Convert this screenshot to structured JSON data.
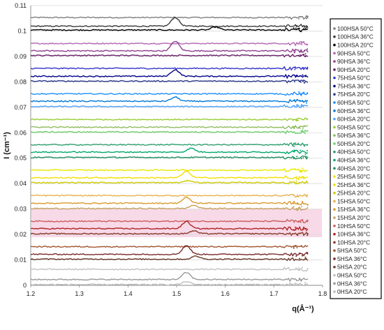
{
  "chart_data": {
    "type": "line",
    "xlabel": "q(Å⁻¹)",
    "ylabel": "I (cm⁻¹)",
    "xlim": [
      1.2,
      1.8
    ],
    "ylim": [
      0,
      0.11
    ],
    "x_ticks": [
      "1.2",
      "1.3",
      "1.4",
      "1.5",
      "1.6",
      "1.7",
      "1.8"
    ],
    "y_ticks": [
      "0",
      "0.01",
      "0.02",
      "0.03",
      "0.04",
      "0.05",
      "0.06",
      "0.07",
      "0.08",
      "0.09",
      "0.1",
      "0.11"
    ],
    "x_data_range": [
      1.2,
      1.77
    ],
    "grid": "horizontal",
    "legend_position": "right",
    "series": [
      {
        "name": "100HSA 50°C",
        "color": "#7f7f7f",
        "baseline": 0.1053,
        "peak_q": null,
        "peak_height": 0
      },
      {
        "name": "100HSA 36°C",
        "color": "#3a3a3a",
        "baseline": 0.1019,
        "peak_q": 1.497,
        "peak_height": 0.0035
      },
      {
        "name": "100HSA 20°C",
        "color": "#000000",
        "baseline": 0.1004,
        "peak_q": 1.58,
        "peak_height": 0.0012
      },
      {
        "name": "90HSA 50°C",
        "color": "#b266b2",
        "baseline": 0.0951,
        "peak_q": null,
        "peak_height": 0
      },
      {
        "name": "90HSA 36°C",
        "color": "#8e3f8e",
        "baseline": 0.0922,
        "peak_q": 1.497,
        "peak_height": 0.0038
      },
      {
        "name": "90HSA 20°C",
        "color": "#6a1f6a",
        "baseline": 0.0904,
        "peak_q": null,
        "peak_height": 0
      },
      {
        "name": "75HSA 50°C",
        "color": "#3333cc",
        "baseline": 0.0853,
        "peak_q": null,
        "peak_height": 0
      },
      {
        "name": "75HSA 36°C",
        "color": "#00008b",
        "baseline": 0.0822,
        "peak_q": 1.497,
        "peak_height": 0.0026
      },
      {
        "name": "75HSA 20°C",
        "color": "#2b3a8c",
        "baseline": 0.0803,
        "peak_q": null,
        "peak_height": 0
      },
      {
        "name": "60HSA 50°C",
        "color": "#1e90ff",
        "baseline": 0.0753,
        "peak_q": null,
        "peak_height": 0
      },
      {
        "name": "60HSA 36°C",
        "color": "#0078d7",
        "baseline": 0.0724,
        "peak_q": 1.497,
        "peak_height": 0.0016
      },
      {
        "name": "60HSA 20°C",
        "color": "#4fa3ff",
        "baseline": 0.0703,
        "peak_q": null,
        "peak_height": 0
      },
      {
        "name": "50HSA 50°C",
        "color": "#9acd32",
        "baseline": 0.0652,
        "peak_q": null,
        "peak_height": 0
      },
      {
        "name": "50HSA 36°C",
        "color": "#8fbc5f",
        "baseline": 0.0622,
        "peak_q": null,
        "peak_height": 0
      },
      {
        "name": "50HSA 20°C",
        "color": "#6fcf6f",
        "baseline": 0.0603,
        "peak_q": null,
        "peak_height": 0
      },
      {
        "name": "40HSA 50°C",
        "color": "#2e9e6e",
        "baseline": 0.0553,
        "peak_q": null,
        "peak_height": 0
      },
      {
        "name": "40HSA 36°C",
        "color": "#00a86b",
        "baseline": 0.0524,
        "peak_q": 1.53,
        "peak_height": 0.0015
      },
      {
        "name": "40HSA 20°C",
        "color": "#1f8f5f",
        "baseline": 0.0503,
        "peak_q": null,
        "peak_height": 0
      },
      {
        "name": "25HSA 50°C",
        "color": "#e8e800",
        "baseline": 0.0453,
        "peak_q": null,
        "peak_height": 0
      },
      {
        "name": "25HSA 36°C",
        "color": "#f0e000",
        "baseline": 0.0423,
        "peak_q": 1.52,
        "peak_height": 0.0025
      },
      {
        "name": "25HSA 20°C",
        "color": "#cccc00",
        "baseline": 0.0404,
        "peak_q": 1.525,
        "peak_height": 0.0008
      },
      {
        "name": "15HSA 50°C",
        "color": "#e8b04a",
        "baseline": 0.0353,
        "peak_q": null,
        "peak_height": 0
      },
      {
        "name": "15HSA 36°C",
        "color": "#d99a2b",
        "baseline": 0.0323,
        "peak_q": 1.52,
        "peak_height": 0.0022
      },
      {
        "name": "15HSA 20°C",
        "color": "#c8a060",
        "baseline": 0.0302,
        "peak_q": 1.535,
        "peak_height": 0.0013
      },
      {
        "name": "10HSA 50°C",
        "color": "#cd5c5c",
        "baseline": 0.0252,
        "peak_q": null,
        "peak_height": 0
      },
      {
        "name": "10HSA 36°C",
        "color": "#b22222",
        "baseline": 0.0223,
        "peak_q": 1.52,
        "peak_height": 0.0028
      },
      {
        "name": "10HSA 20°C",
        "color": "#8b3a2a",
        "baseline": 0.0203,
        "peak_q": 1.535,
        "peak_height": 0.0011
      },
      {
        "name": "5HSA 50°C",
        "color": "#a0522d",
        "baseline": 0.0152,
        "peak_q": null,
        "peak_height": 0
      },
      {
        "name": "5HSA 36°C",
        "color": "#7a2a2a",
        "baseline": 0.0122,
        "peak_q": 1.52,
        "peak_height": 0.0035
      },
      {
        "name": "5HSA 20°C",
        "color": "#6b3a2a",
        "baseline": 0.0103,
        "peak_q": 1.54,
        "peak_height": 0.0012
      },
      {
        "name": "0HSA 50°C",
        "color": "#c0c0c0",
        "baseline": 0.0063,
        "peak_q": null,
        "peak_height": 0
      },
      {
        "name": "0HSA 36°C",
        "color": "#999999",
        "baseline": 0.0023,
        "peak_q": 1.52,
        "peak_height": 0.0028
      },
      {
        "name": "0HSA 20°C",
        "color": "#bdbdbd",
        "baseline": 0.0003,
        "peak_q": 1.52,
        "peak_height": 0.0012
      }
    ]
  }
}
